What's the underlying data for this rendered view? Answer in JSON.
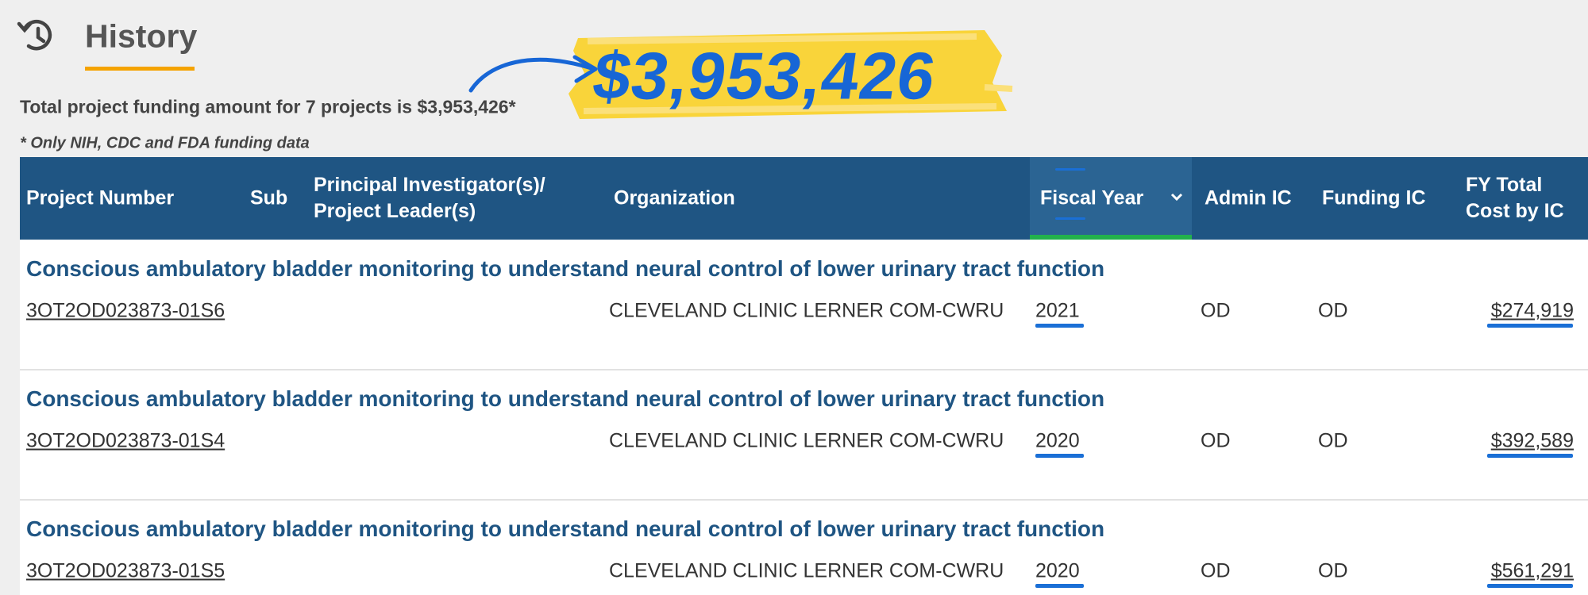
{
  "header": {
    "title": "History"
  },
  "summary": "Total project funding amount for 7 projects is $3,953,426*",
  "highlight": "$3,953,426",
  "note": "* Only NIH, CDC and FDA funding data",
  "table": {
    "columns": [
      "Project Number",
      "Sub",
      "Principal Investigator(s)/ Project Leader(s)",
      "Organization",
      "Fiscal Year",
      "Admin IC",
      "Funding IC",
      "FY Total Cost by IC"
    ],
    "rows": [
      {
        "title": "Conscious ambulatory bladder monitoring to understand neural control of lower urinary tract function",
        "project_number": "3OT2OD023873-01S6",
        "organization": "CLEVELAND CLINIC LERNER COM-CWRU",
        "fiscal_year": "2021",
        "admin_ic": "OD",
        "funding_ic": "OD",
        "cost": "$274,919"
      },
      {
        "title": "Conscious ambulatory bladder monitoring to understand neural control of lower urinary tract function",
        "project_number": "3OT2OD023873-01S4",
        "organization": "CLEVELAND CLINIC LERNER COM-CWRU",
        "fiscal_year": "2020",
        "admin_ic": "OD",
        "funding_ic": "OD",
        "cost": "$392,589"
      },
      {
        "title": "Conscious ambulatory bladder monitoring to understand neural control of lower urinary tract function",
        "project_number": "3OT2OD023873-01S5",
        "organization": "CLEVELAND CLINIC LERNER COM-CWRU",
        "fiscal_year": "2020",
        "admin_ic": "OD",
        "funding_ic": "OD",
        "cost": "$561,291"
      }
    ]
  }
}
